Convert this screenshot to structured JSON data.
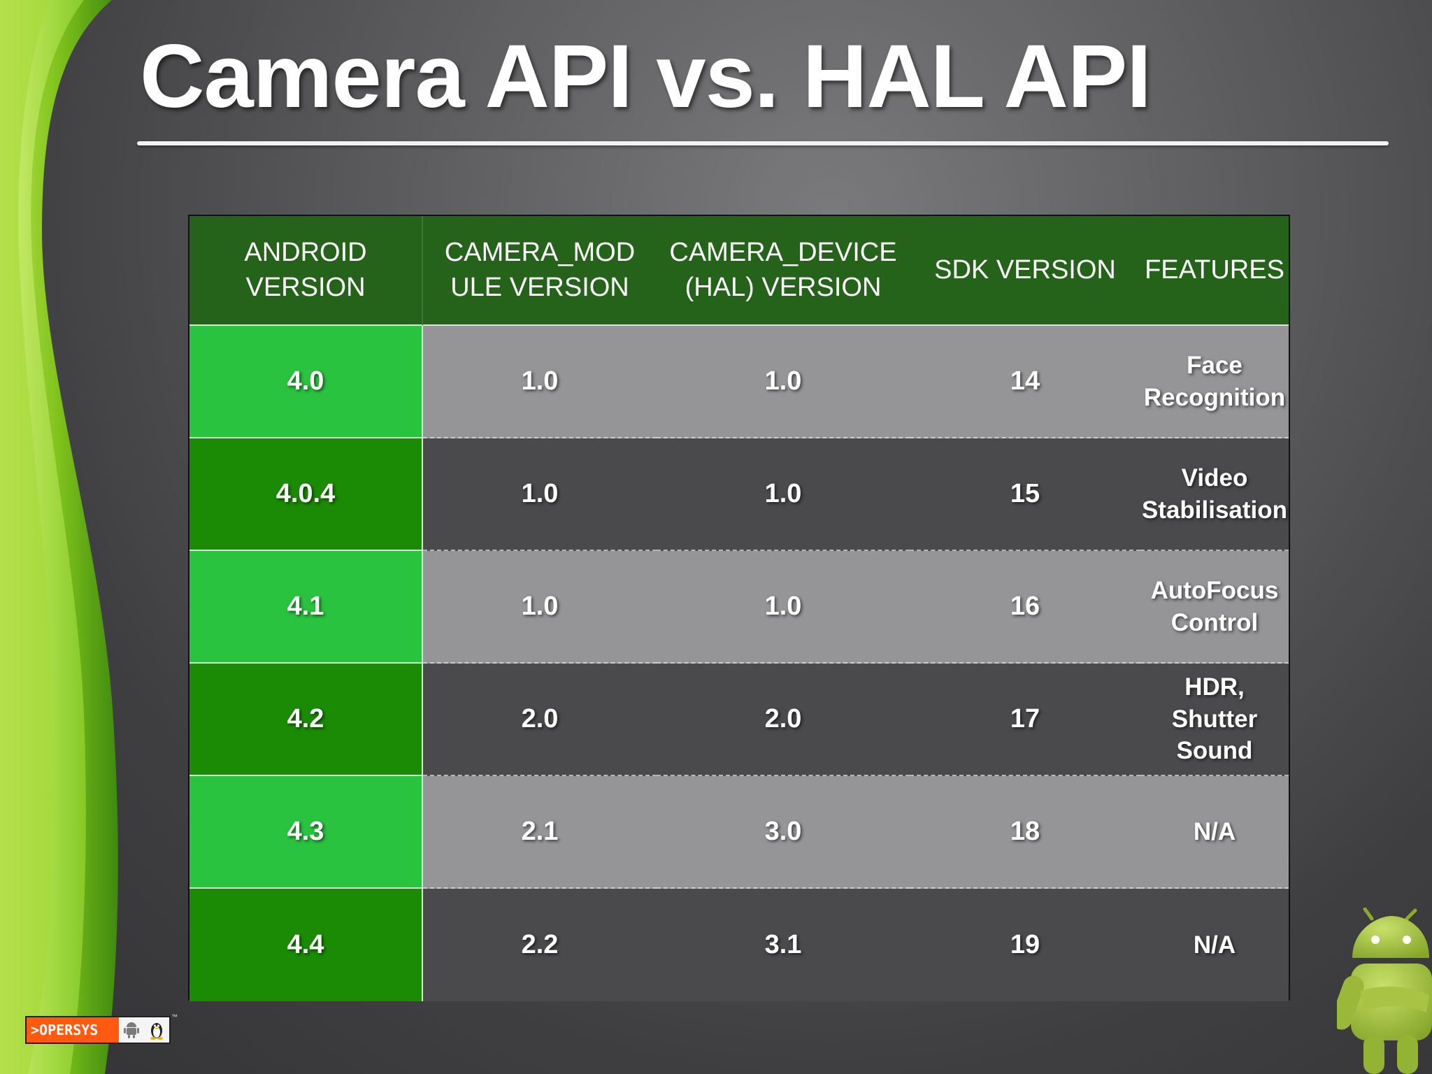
{
  "title": "Camera API vs. HAL API",
  "table": {
    "headers": [
      "ANDROID\nVERSION",
      "CAMERA_MOD\nULE VERSION",
      "CAMERA_DEVICE\n(HAL) VERSION",
      "SDK VERSION",
      "FEATURES"
    ],
    "rows": [
      {
        "android": "4.0",
        "module": "1.0",
        "device": "1.0",
        "sdk": "14",
        "features": "Face\nRecognition"
      },
      {
        "android": "4.0.4",
        "module": "1.0",
        "device": "1.0",
        "sdk": "15",
        "features": "Video\nStabilisation"
      },
      {
        "android": "4.1",
        "module": "1.0",
        "device": "1.0",
        "sdk": "16",
        "features": "AutoFocus\nControl"
      },
      {
        "android": "4.2",
        "module": "2.0",
        "device": "2.0",
        "sdk": "17",
        "features": "HDR,\nShutter\nSound"
      },
      {
        "android": "4.3",
        "module": "2.1",
        "device": "3.0",
        "sdk": "18",
        "features": "N/A"
      },
      {
        "android": "4.4",
        "module": "2.2",
        "device": "3.1",
        "sdk": "19",
        "features": "N/A"
      }
    ]
  },
  "logo": {
    "brand": ">OPERSYS",
    "tm": "™"
  },
  "colors": {
    "header_green": "#246319",
    "version_light_green": "#2ac33f",
    "version_dark_green": "#1b8b06",
    "row_light_gray": "#959496",
    "row_dark_gray": "#4a494b",
    "logo_orange": "#ff5a10",
    "android_green": "#9fc33b"
  },
  "icons": [
    "android-mascot-icon",
    "android-small-icon",
    "tux-penguin-icon"
  ]
}
